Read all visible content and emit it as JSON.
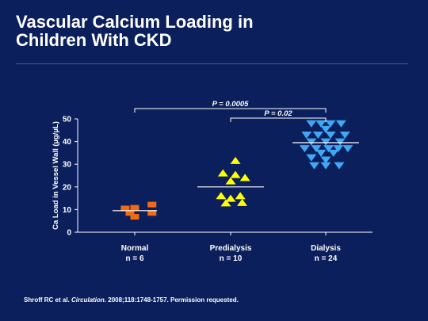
{
  "slide": {
    "title_line1": "Vascular Calcium Loading in",
    "title_line2": "Children With CKD",
    "citation_prefix": "Shroff RC et al. ",
    "citation_journal": "Circulation.",
    "citation_suffix": " 2008;118:1748-1757. Permission requested."
  },
  "chart_data": {
    "type": "scatter",
    "ylabel": "Ca Load in Vessel Wall (µg/µL)",
    "ylim": [
      0,
      50
    ],
    "yticks": [
      0,
      10,
      20,
      30,
      40,
      50
    ],
    "categories": [
      {
        "name": "Normal",
        "n_label": "n = 6"
      },
      {
        "name": "Predialysis",
        "n_label": "n = 10"
      },
      {
        "name": "Dialysis",
        "n_label": "n = 24"
      }
    ],
    "series": [
      {
        "name": "Normal",
        "marker": "square",
        "color": "#f26a12",
        "median": 9.5,
        "points": [
          [
            -0.1,
            10.5
          ],
          [
            0.0,
            10.8
          ],
          [
            0.18,
            12.2
          ],
          [
            -0.05,
            8.5
          ],
          [
            0.18,
            8.5
          ],
          [
            0.0,
            6.8
          ]
        ]
      },
      {
        "name": "Predialysis",
        "marker": "triangle-up",
        "color": "#ffff00",
        "median": 20,
        "points": [
          [
            0.05,
            31.5
          ],
          [
            -0.08,
            26.0
          ],
          [
            0.05,
            25.3
          ],
          [
            0.15,
            24.0
          ],
          [
            0.0,
            22.5
          ],
          [
            -0.1,
            16.0
          ],
          [
            0.1,
            16.0
          ],
          [
            0.0,
            14.8
          ],
          [
            -0.05,
            12.8
          ],
          [
            0.12,
            13.0
          ]
        ]
      },
      {
        "name": "Dialysis",
        "marker": "triangle-down",
        "color": "#3fa8f4",
        "median": 39.5,
        "points": [
          [
            -0.15,
            48.0
          ],
          [
            -0.05,
            48.0
          ],
          [
            0.05,
            48.0
          ],
          [
            0.16,
            48.0
          ],
          [
            0.0,
            45.5
          ],
          [
            -0.2,
            43.0
          ],
          [
            -0.08,
            43.0
          ],
          [
            0.05,
            43.0
          ],
          [
            0.2,
            43.0
          ],
          [
            -0.15,
            40.0
          ],
          [
            0.0,
            40.0
          ],
          [
            0.15,
            40.0
          ],
          [
            -0.22,
            37.0
          ],
          [
            -0.1,
            37.0
          ],
          [
            0.03,
            37.0
          ],
          [
            0.13,
            37.0
          ],
          [
            0.23,
            37.0
          ],
          [
            -0.05,
            35.0
          ],
          [
            0.08,
            35.0
          ],
          [
            -0.15,
            33.0
          ],
          [
            0.0,
            32.0
          ],
          [
            -0.12,
            29.5
          ],
          [
            0.0,
            29.5
          ],
          [
            0.14,
            29.5
          ]
        ]
      }
    ],
    "annotations": [
      {
        "label": "P = 0.0005",
        "from": 0,
        "to": 2
      },
      {
        "label": "P = 0.02",
        "from": 1,
        "to": 2
      }
    ]
  }
}
